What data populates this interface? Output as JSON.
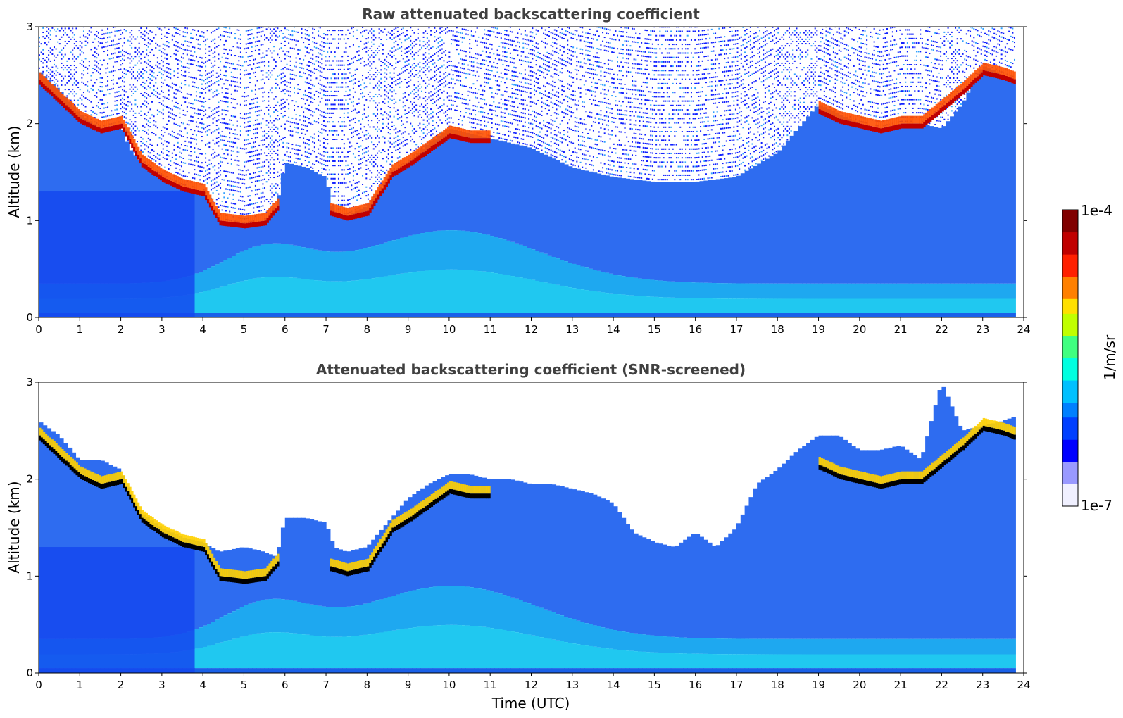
{
  "chart_data": [
    {
      "type": "heatmap",
      "title": "Raw attenuated backscattering coefficient",
      "xlabel": "",
      "ylabel": "Altitude (km)",
      "xlim": [
        0,
        24
      ],
      "ylim": [
        0,
        3
      ],
      "xticks": [
        0,
        1,
        2,
        3,
        4,
        5,
        6,
        7,
        8,
        9,
        10,
        11,
        12,
        13,
        14,
        15,
        16,
        17,
        18,
        19,
        20,
        21,
        22,
        23,
        24
      ],
      "yticks": [
        0,
        1,
        2,
        3
      ],
      "screened": false,
      "layer_top_km": [
        [
          0,
          2.55
        ],
        [
          0.5,
          2.35
        ],
        [
          1,
          2.1
        ],
        [
          1.5,
          1.95
        ],
        [
          2,
          2.0
        ],
        [
          2.2,
          1.75
        ],
        [
          2.5,
          1.6
        ],
        [
          3,
          1.45
        ],
        [
          3.5,
          1.35
        ],
        [
          4,
          1.3
        ],
        [
          4.4,
          1.0
        ],
        [
          5,
          0.95
        ],
        [
          5.5,
          1.0
        ],
        [
          5.8,
          1.15
        ],
        [
          6,
          1.6
        ],
        [
          6.5,
          1.55
        ],
        [
          7,
          1.45
        ],
        [
          7.2,
          1.05
        ],
        [
          7.5,
          1.05
        ],
        [
          8,
          1.15
        ],
        [
          8.3,
          1.3
        ],
        [
          8.6,
          1.5
        ],
        [
          9,
          1.6
        ],
        [
          9.5,
          1.8
        ],
        [
          10,
          1.95
        ],
        [
          10.5,
          1.9
        ],
        [
          11,
          1.85
        ],
        [
          11.5,
          1.8
        ],
        [
          12,
          1.75
        ],
        [
          12.5,
          1.65
        ],
        [
          13,
          1.55
        ],
        [
          13.5,
          1.5
        ],
        [
          14,
          1.45
        ],
        [
          15,
          1.4
        ],
        [
          16,
          1.4
        ],
        [
          17,
          1.45
        ],
        [
          18,
          1.7
        ],
        [
          18.5,
          1.95
        ],
        [
          19,
          2.2
        ],
        [
          19.5,
          2.1
        ],
        [
          20,
          2.0
        ],
        [
          20.5,
          1.95
        ],
        [
          21,
          2.0
        ],
        [
          21.5,
          2.0
        ],
        [
          22,
          1.95
        ],
        [
          22.5,
          2.2
        ],
        [
          23,
          2.6
        ],
        [
          23.5,
          2.5
        ],
        [
          23.8,
          2.45
        ]
      ],
      "cloud_base_km": [
        [
          0,
          2.4
        ],
        [
          1,
          2.0
        ],
        [
          1.5,
          1.9
        ],
        [
          2,
          1.95
        ],
        [
          2.5,
          1.55
        ],
        [
          3,
          1.4
        ],
        [
          3.5,
          1.3
        ],
        [
          4,
          1.25
        ],
        [
          4.4,
          0.95
        ],
        [
          5,
          0.92
        ],
        [
          5.5,
          0.95
        ],
        [
          5.8,
          1.1
        ],
        [
          7.1,
          1.05
        ],
        [
          7.5,
          1.0
        ],
        [
          8,
          1.05
        ],
        [
          8.3,
          1.25
        ],
        [
          8.6,
          1.45
        ],
        [
          9,
          1.55
        ],
        [
          9.5,
          1.7
        ],
        [
          10,
          1.85
        ],
        [
          10.5,
          1.8
        ],
        [
          11,
          1.8
        ],
        [
          19,
          2.1
        ],
        [
          19.5,
          2.0
        ],
        [
          20,
          1.95
        ],
        [
          20.5,
          1.9
        ],
        [
          21,
          1.95
        ],
        [
          21.5,
          1.95
        ],
        [
          22.5,
          2.3
        ],
        [
          23,
          2.5
        ],
        [
          23.5,
          2.45
        ],
        [
          23.8,
          2.4
        ]
      ]
    },
    {
      "type": "heatmap",
      "title": "Attenuated backscattering coefficient (SNR-screened)",
      "xlabel": "Time (UTC)",
      "ylabel": "Altitude (km)",
      "xlim": [
        0,
        24
      ],
      "ylim": [
        0,
        3
      ],
      "xticks": [
        0,
        1,
        2,
        3,
        4,
        5,
        6,
        7,
        8,
        9,
        10,
        11,
        12,
        13,
        14,
        15,
        16,
        17,
        18,
        19,
        20,
        21,
        22,
        23,
        24
      ],
      "yticks": [
        0,
        1,
        2,
        3
      ],
      "screened": true,
      "layer_top_km": [
        [
          0,
          2.6
        ],
        [
          0.5,
          2.45
        ],
        [
          1,
          2.2
        ],
        [
          1.5,
          2.2
        ],
        [
          2,
          2.1
        ],
        [
          2.2,
          1.85
        ],
        [
          2.5,
          1.65
        ],
        [
          3,
          1.5
        ],
        [
          3.5,
          1.4
        ],
        [
          4,
          1.35
        ],
        [
          4.4,
          1.25
        ],
        [
          5,
          1.3
        ],
        [
          5.5,
          1.25
        ],
        [
          5.8,
          1.2
        ],
        [
          6,
          1.6
        ],
        [
          6.5,
          1.6
        ],
        [
          7,
          1.55
        ],
        [
          7.2,
          1.3
        ],
        [
          7.5,
          1.25
        ],
        [
          8,
          1.3
        ],
        [
          8.3,
          1.45
        ],
        [
          8.6,
          1.6
        ],
        [
          9,
          1.8
        ],
        [
          9.5,
          1.95
        ],
        [
          10,
          2.05
        ],
        [
          10.5,
          2.05
        ],
        [
          11,
          2.0
        ],
        [
          11.5,
          2.0
        ],
        [
          12,
          1.95
        ],
        [
          12.5,
          1.95
        ],
        [
          13,
          1.9
        ],
        [
          13.5,
          1.85
        ],
        [
          14,
          1.75
        ],
        [
          14.5,
          1.45
        ],
        [
          15,
          1.35
        ],
        [
          15.5,
          1.3
        ],
        [
          16,
          1.45
        ],
        [
          16.5,
          1.3
        ],
        [
          17,
          1.5
        ],
        [
          17.5,
          1.95
        ],
        [
          18,
          2.1
        ],
        [
          18.5,
          2.3
        ],
        [
          19,
          2.45
        ],
        [
          19.5,
          2.45
        ],
        [
          20,
          2.3
        ],
        [
          20.5,
          2.3
        ],
        [
          21,
          2.35
        ],
        [
          21.5,
          2.2
        ],
        [
          22,
          3.0
        ],
        [
          22.5,
          2.5
        ],
        [
          23,
          2.55
        ],
        [
          23.5,
          2.6
        ],
        [
          23.8,
          2.65
        ]
      ],
      "cloud_base_km": [
        [
          0,
          2.4
        ],
        [
          1,
          2.0
        ],
        [
          1.5,
          1.9
        ],
        [
          2,
          1.95
        ],
        [
          2.5,
          1.55
        ],
        [
          3,
          1.4
        ],
        [
          3.5,
          1.3
        ],
        [
          4,
          1.25
        ],
        [
          4.4,
          0.95
        ],
        [
          5,
          0.92
        ],
        [
          5.5,
          0.95
        ],
        [
          5.8,
          1.1
        ],
        [
          7.1,
          1.05
        ],
        [
          7.5,
          1.0
        ],
        [
          8,
          1.05
        ],
        [
          8.3,
          1.25
        ],
        [
          8.6,
          1.45
        ],
        [
          9,
          1.55
        ],
        [
          9.5,
          1.7
        ],
        [
          10,
          1.85
        ],
        [
          10.5,
          1.8
        ],
        [
          11,
          1.8
        ],
        [
          19,
          2.1
        ],
        [
          19.5,
          2.0
        ],
        [
          20,
          1.95
        ],
        [
          20.5,
          1.9
        ],
        [
          21,
          1.95
        ],
        [
          21.5,
          1.95
        ],
        [
          22.5,
          2.3
        ],
        [
          23,
          2.5
        ],
        [
          23.5,
          2.45
        ],
        [
          23.8,
          2.4
        ]
      ]
    }
  ],
  "colorbar": {
    "label": "1/m/sr",
    "max_label": "1e-4",
    "min_label": "1e-7",
    "min": 1e-07,
    "max": 0.0001,
    "scale": "log",
    "colormap": [
      "#f0f0ff",
      "#9999ff",
      "#0000ff",
      "#0040ff",
      "#0080ff",
      "#00c0ff",
      "#00ffe0",
      "#40ff80",
      "#c0ff00",
      "#ffe000",
      "#ff8000",
      "#ff2000",
      "#c00000",
      "#800000"
    ]
  },
  "colors": {
    "background": "#ffffff",
    "noise": "#1020ff",
    "low_level": "#2e6cf0",
    "boundary_layer": "#20c8f0",
    "cloud": "#c00000",
    "cloud_screened": "#000000"
  }
}
